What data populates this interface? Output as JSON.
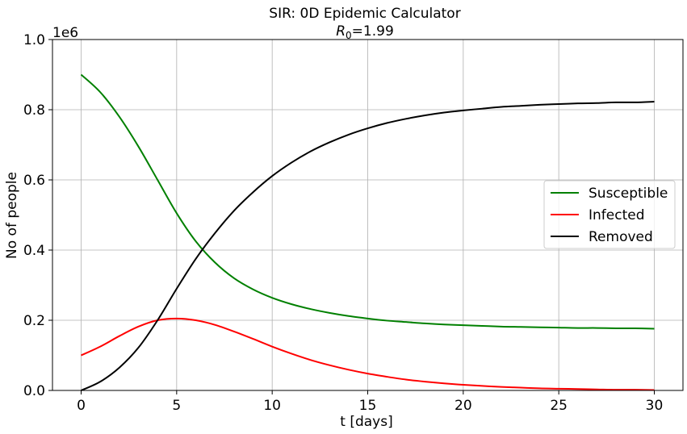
{
  "chart_data": {
    "type": "line",
    "title": "SIR: 0D Epidemic Calculator",
    "subtitle_symbol": "R",
    "subtitle_subscript": "0",
    "subtitle_value": "=1.99",
    "xlabel": "t [days]",
    "ylabel": "No of people",
    "y_offset_label": "1e6",
    "xlim": [
      -1.5,
      31.5
    ],
    "ylim": [
      0.0,
      1.0
    ],
    "x_ticks": [
      0,
      5,
      10,
      15,
      20,
      25,
      30
    ],
    "x_tick_labels": [
      "0",
      "5",
      "10",
      "15",
      "20",
      "25",
      "30"
    ],
    "y_ticks": [
      0.0,
      0.2,
      0.4,
      0.6,
      0.8,
      1.0
    ],
    "y_tick_labels": [
      "0.0",
      "0.2",
      "0.4",
      "0.6",
      "0.8",
      "1.0"
    ],
    "grid": true,
    "legend_position": "right",
    "x": [
      0,
      1,
      2,
      3,
      4,
      5,
      6,
      7,
      8,
      9,
      10,
      11,
      12,
      13,
      14,
      15,
      16,
      17,
      18,
      19,
      20,
      21,
      22,
      23,
      24,
      25,
      26,
      27,
      28,
      29,
      30
    ],
    "series": [
      {
        "name": "Susceptible",
        "color": "#008000",
        "values": [
          0.9,
          0.85,
          0.78,
          0.695,
          0.6,
          0.505,
          0.425,
          0.365,
          0.32,
          0.288,
          0.264,
          0.246,
          0.232,
          0.221,
          0.212,
          0.205,
          0.199,
          0.195,
          0.191,
          0.188,
          0.186,
          0.184,
          0.182,
          0.181,
          0.18,
          0.179,
          0.178,
          0.178,
          0.177,
          0.177,
          0.176
        ]
      },
      {
        "name": "Infected",
        "color": "#ff0000",
        "values": [
          0.1,
          0.125,
          0.155,
          0.182,
          0.2,
          0.205,
          0.2,
          0.187,
          0.168,
          0.147,
          0.125,
          0.105,
          0.087,
          0.072,
          0.059,
          0.048,
          0.039,
          0.031,
          0.025,
          0.02,
          0.016,
          0.013,
          0.01,
          0.008,
          0.006,
          0.005,
          0.004,
          0.003,
          0.002,
          0.002,
          0.001
        ]
      },
      {
        "name": "Removed",
        "color": "#000000",
        "values": [
          0.0,
          0.025,
          0.065,
          0.122,
          0.2,
          0.29,
          0.375,
          0.448,
          0.512,
          0.565,
          0.611,
          0.649,
          0.681,
          0.707,
          0.729,
          0.747,
          0.762,
          0.774,
          0.784,
          0.792,
          0.798,
          0.803,
          0.808,
          0.811,
          0.814,
          0.816,
          0.818,
          0.819,
          0.821,
          0.821,
          0.823
        ]
      }
    ]
  }
}
